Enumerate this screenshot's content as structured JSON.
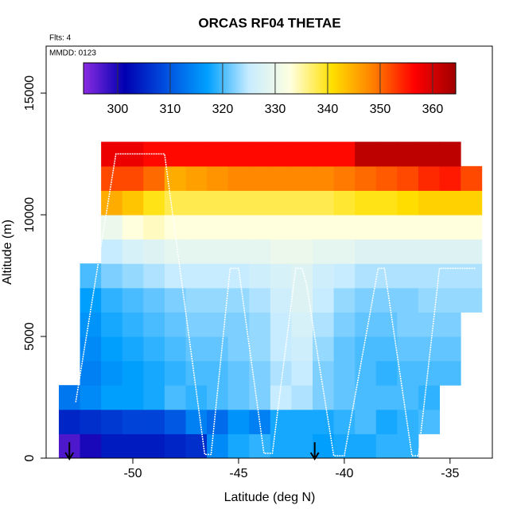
{
  "chart_data": {
    "type": "heatmap",
    "title": "ORCAS RF04 THETAE",
    "annotations": [
      "Flts: 4",
      "MMDD: 0123"
    ],
    "xlabel": "Latitude (deg N)",
    "ylabel": "Altitude (m)",
    "xlim": [
      -54.1,
      -33.0
    ],
    "ylim": [
      0,
      16930
    ],
    "xticks": [
      -50,
      -45,
      -40,
      -35
    ],
    "yticks": [
      0,
      5000,
      10000,
      15000
    ],
    "clim": [
      293.5,
      364.4
    ],
    "cticks": [
      300,
      310,
      320,
      330,
      340,
      350,
      360
    ],
    "colormap": [
      "#8a2be2",
      "#0000b0",
      "#0050e0",
      "#00a0ff",
      "#c8ecff",
      "#ffffe0",
      "#ffe000",
      "#ff8000",
      "#ff0000",
      "#a00000"
    ],
    "x": [
      -53,
      -52,
      -51,
      -50,
      -49,
      -48,
      -47,
      -46,
      -45,
      -44,
      -43,
      -42,
      -41,
      -40,
      -39,
      -38,
      -37,
      -36,
      -35,
      -34
    ],
    "y": [
      500,
      1500,
      2500,
      3500,
      4500,
      5500,
      6500,
      7500,
      8500,
      9500,
      10500,
      11500,
      12500
    ],
    "z": [
      [
        297,
        300,
        304,
        304,
        304,
        305,
        306,
        315,
        318,
        319,
        318,
        318,
        317,
        318,
        318,
        319,
        319,
        null,
        null,
        null
      ],
      [
        305,
        306,
        307,
        308,
        308,
        310,
        314,
        312,
        316,
        314,
        318,
        318,
        318,
        319,
        320,
        318,
        319,
        320,
        null,
        null
      ],
      [
        313,
        315,
        317,
        317,
        318,
        320,
        319,
        320,
        321,
        322,
        325,
        324,
        322,
        321,
        320,
        320,
        320,
        319,
        null,
        null
      ],
      [
        null,
        314,
        316,
        317,
        318,
        319,
        320,
        320,
        321,
        322,
        324,
        325,
        322,
        321,
        320,
        319,
        320,
        320,
        320,
        null
      ],
      [
        null,
        315,
        317,
        318,
        319,
        320,
        321,
        321,
        322,
        323,
        325,
        326,
        323,
        321,
        320,
        320,
        321,
        321,
        321,
        null
      ],
      [
        null,
        316,
        318,
        319,
        320,
        321,
        322,
        322,
        322,
        323,
        325,
        327,
        324,
        322,
        321,
        321,
        322,
        322,
        322,
        null
      ],
      [
        null,
        317,
        319,
        320,
        321,
        322,
        323,
        323,
        323,
        324,
        326,
        328,
        325,
        323,
        322,
        322,
        322,
        323,
        323,
        323
      ],
      [
        null,
        320,
        322,
        323,
        324,
        325,
        325,
        325,
        325,
        326,
        327,
        328,
        326,
        325,
        324,
        324,
        324,
        324,
        324,
        324
      ],
      [
        null,
        null,
        325,
        327,
        328,
        329,
        329,
        329,
        329,
        329,
        330,
        330,
        329,
        329,
        328,
        328,
        328,
        328,
        328,
        328
      ],
      [
        null,
        null,
        330,
        333,
        334,
        333,
        333,
        333,
        333,
        333,
        333,
        333,
        333,
        333,
        333,
        333,
        333,
        333,
        333,
        333
      ],
      [
        null,
        null,
        345,
        343,
        340,
        338,
        338,
        338,
        338,
        338,
        338,
        338,
        338,
        339,
        340,
        340,
        341,
        342,
        342,
        342
      ],
      [
        null,
        null,
        352,
        352,
        350,
        345,
        346,
        347,
        348,
        348,
        348,
        348,
        348,
        349,
        350,
        351,
        352,
        354,
        355,
        352
      ],
      [
        null,
        null,
        358,
        358,
        356,
        356,
        356,
        356,
        356,
        356,
        356,
        356,
        356,
        356,
        362,
        362,
        362,
        362,
        362,
        null
      ]
    ],
    "track": {
      "color": "#ffffff",
      "x": [
        -52.7,
        -50.8,
        -48.5,
        -46.6,
        -46.3,
        -45.4,
        -45.0,
        -43.8,
        -43.4,
        -42.3,
        -42.0,
        -41.8,
        -40.5,
        -40.0,
        -38.4,
        -38.1,
        -36.8,
        -36.5,
        -35.5,
        -33.8
      ],
      "y": [
        2300,
        12500,
        12500,
        150,
        150,
        7800,
        7800,
        200,
        200,
        7800,
        7800,
        7200,
        100,
        100,
        7800,
        7800,
        100,
        100,
        7800,
        7800
      ]
    },
    "arrows_x": [
      -53,
      -41.4
    ]
  }
}
